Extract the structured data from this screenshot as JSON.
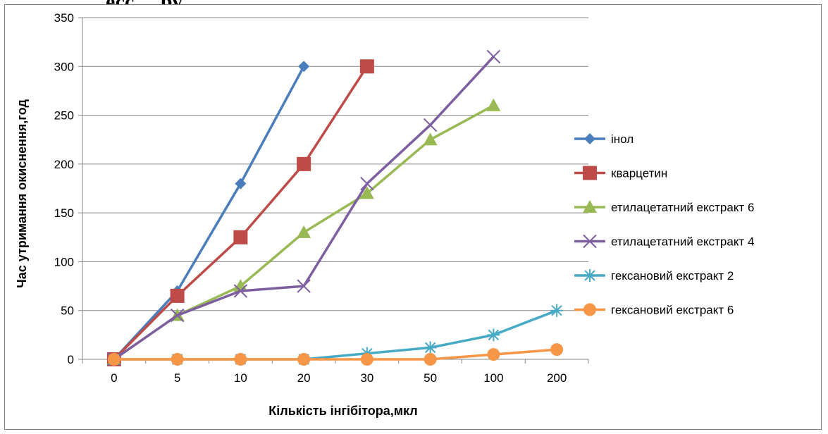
{
  "page_header_fragment": "…есс    …ру",
  "chart_data": {
    "type": "line",
    "title": "",
    "xlabel": "Кількість інгібітора,мкл",
    "ylabel": "Час утримання окиснення,год",
    "categories": [
      "0",
      "5",
      "10",
      "20",
      "30",
      "50",
      "100",
      "200"
    ],
    "ylim": [
      0,
      350
    ],
    "yticks": [
      0,
      50,
      100,
      150,
      200,
      250,
      300,
      350
    ],
    "grid": true,
    "legend_position": "right",
    "series": [
      {
        "name": "інол",
        "color": "#4a7ebb",
        "marker": "diamond",
        "values": [
          0,
          70,
          180,
          300,
          null,
          null,
          null,
          null
        ]
      },
      {
        "name": "кварцетин",
        "color": "#be4b48",
        "marker": "square",
        "values": [
          0,
          65,
          125,
          200,
          300,
          null,
          null,
          null
        ]
      },
      {
        "name": "етилацетатний екстракт 6",
        "color": "#98b954",
        "marker": "triangle",
        "values": [
          0,
          45,
          75,
          130,
          170,
          225,
          260,
          null
        ]
      },
      {
        "name": "етилацетатний екстракт 4",
        "color": "#7d5fa0",
        "marker": "x",
        "values": [
          0,
          45,
          70,
          75,
          180,
          240,
          310,
          null
        ]
      },
      {
        "name": "гексановий екстракт 2",
        "color": "#46aac5",
        "marker": "star",
        "values": [
          0,
          0,
          0,
          0,
          6,
          12,
          25,
          50
        ]
      },
      {
        "name": "гексановий екстракт 6",
        "color": "#f79646",
        "marker": "circle",
        "values": [
          0,
          0,
          0,
          0,
          0,
          0,
          5,
          10
        ]
      }
    ]
  }
}
